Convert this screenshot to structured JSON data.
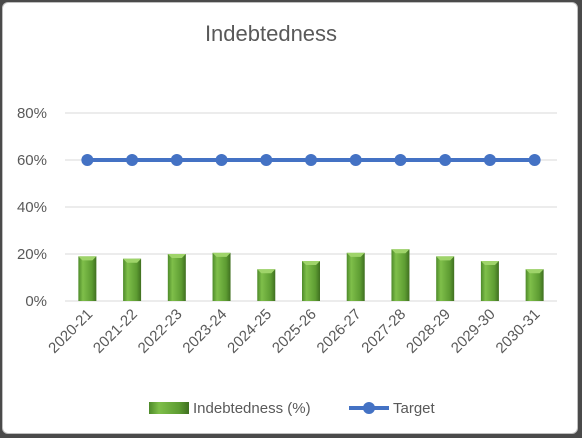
{
  "chart_data": {
    "type": "bar",
    "title": "Indebtedness",
    "categories": [
      "2020-21",
      "2021-22",
      "2022-23",
      "2023-24",
      "2024-25",
      "2025-26",
      "2026-27",
      "2027-28",
      "2028-29",
      "2029-30",
      "2030-31"
    ],
    "series": [
      {
        "name": "Indebtedness (%)",
        "type": "bar",
        "color": "#6aaa3a",
        "values": [
          19,
          18,
          20,
          20.5,
          13.5,
          17,
          20.5,
          22,
          19,
          17,
          13.5
        ]
      },
      {
        "name": "Target",
        "type": "line",
        "color": "#4472c4",
        "values": [
          60,
          60,
          60,
          60,
          60,
          60,
          60,
          60,
          60,
          60,
          60
        ]
      }
    ],
    "y_ticks": [
      "0%",
      "20%",
      "40%",
      "60%",
      "80%"
    ],
    "ylim": [
      0,
      80
    ],
    "grid": true,
    "legend_position": "bottom"
  }
}
